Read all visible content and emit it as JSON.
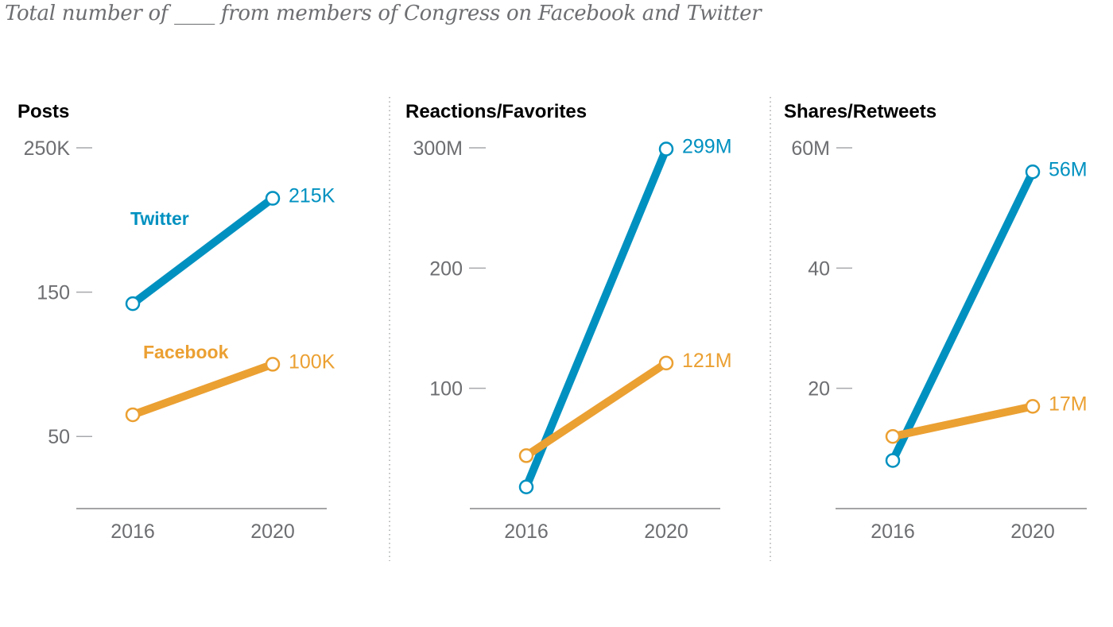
{
  "title": "Total number of ____ from members of Congress on Facebook and Twitter",
  "colors": {
    "twitter": "#0091c0",
    "facebook": "#eba032",
    "axis": "#6d6e71",
    "tick": "#a7a9ac",
    "divider": "#a7a9ac"
  },
  "chart_data": [
    {
      "type": "line",
      "title": "Posts",
      "categories": [
        "2016",
        "2020"
      ],
      "ylim": [
        0,
        250
      ],
      "yticks": [
        {
          "value": 250,
          "label": "250K"
        },
        {
          "value": 150,
          "label": "150"
        },
        {
          "value": 50,
          "label": "50"
        }
      ],
      "series": [
        {
          "name": "Twitter",
          "key": "twitter",
          "values": [
            142,
            215
          ],
          "end_label": "215K",
          "show_name": true
        },
        {
          "name": "Facebook",
          "key": "facebook",
          "values": [
            65,
            100
          ],
          "end_label": "100K",
          "show_name": true
        }
      ],
      "units": "thousands",
      "grid": false
    },
    {
      "type": "line",
      "title": "Reactions/Favorites",
      "categories": [
        "2016",
        "2020"
      ],
      "ylim": [
        0,
        300
      ],
      "yticks": [
        {
          "value": 300,
          "label": "300M"
        },
        {
          "value": 200,
          "label": "200"
        },
        {
          "value": 100,
          "label": "100"
        }
      ],
      "series": [
        {
          "name": "Twitter",
          "key": "twitter",
          "values": [
            18,
            299
          ],
          "end_label": "299M",
          "show_name": false
        },
        {
          "name": "Facebook",
          "key": "facebook",
          "values": [
            44,
            121
          ],
          "end_label": "121M",
          "show_name": false
        }
      ],
      "units": "millions",
      "grid": false
    },
    {
      "type": "line",
      "title": "Shares/Retweets",
      "categories": [
        "2016",
        "2020"
      ],
      "ylim": [
        0,
        60
      ],
      "yticks": [
        {
          "value": 60,
          "label": "60M"
        },
        {
          "value": 40,
          "label": "40"
        },
        {
          "value": 20,
          "label": "20"
        }
      ],
      "series": [
        {
          "name": "Twitter",
          "key": "twitter",
          "values": [
            8,
            56
          ],
          "end_label": "56M",
          "show_name": false
        },
        {
          "name": "Facebook",
          "key": "facebook",
          "values": [
            12,
            17
          ],
          "end_label": "17M",
          "show_name": false
        }
      ],
      "units": "millions",
      "grid": false
    }
  ]
}
